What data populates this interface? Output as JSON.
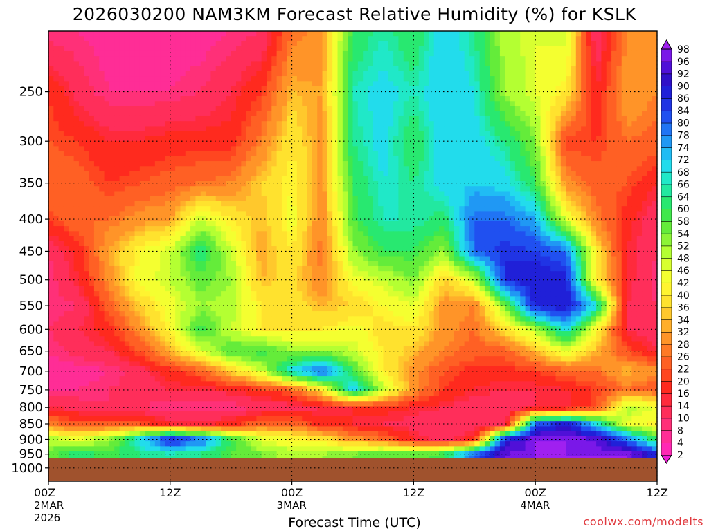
{
  "title": "2026030200 NAM3KM Forecast Relative Humidity (%) for KSLK",
  "credit": "coolwx.com/modelts",
  "chart_data": {
    "type": "heatmap",
    "title": "2026030200 NAM3KM Forecast Relative Humidity (%) for KSLK",
    "xlabel": "Forecast Time (UTC)",
    "ylabel": "",
    "x_range_hours": [
      0,
      60
    ],
    "y_range_hPa": [
      1050,
      200
    ],
    "y_scale": "log-pressure",
    "x_ticks": [
      {
        "hour": 0,
        "label": "00Z",
        "sub": [
          "2MAR",
          "2026"
        ]
      },
      {
        "hour": 12,
        "label": "12Z",
        "sub": []
      },
      {
        "hour": 24,
        "label": "00Z",
        "sub": [
          "3MAR"
        ]
      },
      {
        "hour": 36,
        "label": "12Z",
        "sub": []
      },
      {
        "hour": 48,
        "label": "00Z",
        "sub": [
          "4MAR"
        ]
      },
      {
        "hour": 60,
        "label": "12Z",
        "sub": []
      }
    ],
    "y_ticks": [
      250,
      300,
      350,
      400,
      450,
      500,
      550,
      600,
      650,
      700,
      750,
      800,
      850,
      900,
      950,
      1000
    ],
    "grid": true,
    "colorbar": {
      "levels": [
        2,
        4,
        8,
        10,
        14,
        16,
        20,
        22,
        26,
        28,
        32,
        34,
        36,
        40,
        42,
        46,
        48,
        52,
        54,
        58,
        60,
        64,
        66,
        68,
        72,
        74,
        78,
        80,
        84,
        86,
        90,
        92,
        96,
        98
      ],
      "colors": [
        "#f01ad6",
        "#ff28b4",
        "#ff2d96",
        "#ff3078",
        "#ff2e5a",
        "#ff2a3c",
        "#ff2a1e",
        "#ff4620",
        "#ff6024",
        "#ff7a26",
        "#ff9428",
        "#ffae2a",
        "#ffc82c",
        "#ffe22e",
        "#fff430",
        "#f4ff30",
        "#d8ff30",
        "#b4ff32",
        "#8cf436",
        "#64ec3a",
        "#40e84c",
        "#28e870",
        "#22e8a0",
        "#20e8c8",
        "#22dcec",
        "#20bcf4",
        "#2098f4",
        "#2074f4",
        "#2050f0",
        "#2034e4",
        "#2020d8",
        "#3010c8",
        "#5010d8",
        "#7a18e8",
        "#a020f0"
      ],
      "placement": "right"
    },
    "ground_below_hPa": 965,
    "samples": {
      "hours": [
        0,
        3,
        6,
        9,
        12,
        15,
        18,
        21,
        24,
        27,
        30,
        33,
        36,
        39,
        42,
        45,
        48,
        51,
        54,
        57,
        60
      ],
      "levels": [
        200,
        250,
        300,
        350,
        400,
        450,
        500,
        550,
        600,
        650,
        700,
        750,
        800,
        850,
        900,
        950
      ],
      "rh": [
        [
          8,
          8,
          6,
          6,
          6,
          6,
          8,
          10,
          26,
          30,
          60,
          66,
          60,
          72,
          64,
          50,
          46,
          48,
          10,
          28,
          30
        ],
        [
          20,
          12,
          8,
          8,
          8,
          10,
          14,
          20,
          34,
          32,
          66,
          70,
          66,
          72,
          68,
          52,
          46,
          40,
          16,
          32,
          28
        ],
        [
          22,
          20,
          16,
          16,
          18,
          18,
          18,
          28,
          40,
          30,
          64,
          70,
          60,
          72,
          70,
          64,
          54,
          20,
          20,
          26,
          24
        ],
        [
          26,
          24,
          20,
          22,
          24,
          26,
          28,
          36,
          42,
          30,
          60,
          68,
          64,
          70,
          72,
          70,
          60,
          30,
          24,
          22,
          16
        ],
        [
          20,
          26,
          26,
          30,
          32,
          48,
          40,
          34,
          44,
          28,
          58,
          66,
          66,
          62,
          80,
          80,
          74,
          46,
          28,
          18,
          10
        ],
        [
          10,
          18,
          32,
          42,
          48,
          64,
          48,
          32,
          40,
          26,
          52,
          60,
          60,
          52,
          80,
          86,
          84,
          80,
          40,
          16,
          10
        ],
        [
          8,
          16,
          30,
          44,
          48,
          56,
          52,
          34,
          38,
          28,
          44,
          48,
          54,
          36,
          48,
          86,
          90,
          88,
          40,
          16,
          8
        ],
        [
          8,
          10,
          24,
          36,
          44,
          52,
          50,
          40,
          38,
          34,
          36,
          42,
          46,
          30,
          28,
          54,
          88,
          90,
          70,
          14,
          10
        ],
        [
          10,
          14,
          18,
          30,
          42,
          60,
          48,
          40,
          40,
          40,
          44,
          38,
          40,
          30,
          26,
          38,
          50,
          70,
          42,
          14,
          10
        ],
        [
          8,
          12,
          14,
          22,
          34,
          46,
          58,
          60,
          52,
          52,
          48,
          40,
          34,
          28,
          24,
          24,
          34,
          46,
          34,
          22,
          14
        ],
        [
          6,
          6,
          8,
          12,
          18,
          24,
          36,
          48,
          70,
          82,
          60,
          40,
          30,
          22,
          18,
          18,
          20,
          24,
          26,
          34,
          30
        ],
        [
          8,
          8,
          10,
          12,
          14,
          14,
          16,
          20,
          24,
          40,
          72,
          50,
          30,
          20,
          16,
          14,
          14,
          16,
          20,
          26,
          22
        ],
        [
          14,
          12,
          10,
          10,
          8,
          8,
          8,
          10,
          12,
          14,
          16,
          18,
          16,
          14,
          10,
          10,
          14,
          14,
          22,
          50,
          46
        ],
        [
          28,
          22,
          24,
          22,
          16,
          14,
          18,
          26,
          26,
          18,
          16,
          14,
          12,
          10,
          10,
          12,
          80,
          90,
          70,
          46,
          40
        ],
        [
          50,
          46,
          52,
          70,
          88,
          80,
          60,
          46,
          42,
          40,
          30,
          26,
          16,
          12,
          18,
          88,
          98,
          98,
          96,
          80,
          60
        ],
        [
          56,
          62,
          58,
          64,
          66,
          64,
          58,
          54,
          50,
          52,
          54,
          58,
          56,
          60,
          80,
          96,
          98,
          98,
          98,
          98,
          86
        ]
      ]
    }
  }
}
